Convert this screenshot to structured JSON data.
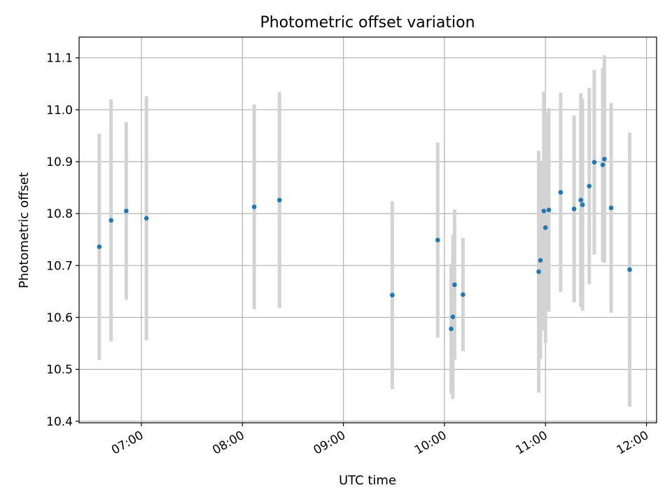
{
  "chart_data": {
    "type": "scatter",
    "title": "Photometric offset variation",
    "xlabel": "UTC time",
    "ylabel": "Photometric offset",
    "x_ticks": [
      "07:00",
      "08:00",
      "09:00",
      "10:00",
      "11:00",
      "12:00"
    ],
    "y_ticks": [
      "10.4",
      "10.5",
      "10.6",
      "10.7",
      "10.8",
      "10.9",
      "11.0",
      "11.1"
    ],
    "xlim": [
      "06:23",
      "12:06"
    ],
    "ylim": [
      10.397,
      11.14
    ],
    "grid": true,
    "series": [
      {
        "points": [
          {
            "x": "06:35",
            "y": 10.736,
            "err": 0.218
          },
          {
            "x": "06:42",
            "y": 10.787,
            "err": 0.233
          },
          {
            "x": "06:51",
            "y": 10.805,
            "err": 0.171
          },
          {
            "x": "07:03",
            "y": 10.791,
            "err": 0.235
          },
          {
            "x": "08:07",
            "y": 10.813,
            "err": 0.197
          },
          {
            "x": "08:22",
            "y": 10.826,
            "err": 0.208
          },
          {
            "x": "09:29",
            "y": 10.643,
            "err": 0.181
          },
          {
            "x": "09:56",
            "y": 10.749,
            "err": 0.188
          },
          {
            "x": "10:04",
            "y": 10.578,
            "err": 0.125
          },
          {
            "x": "10:05",
            "y": 10.601,
            "err": 0.158
          },
          {
            "x": "10:06",
            "y": 10.663,
            "err": 0.145
          },
          {
            "x": "10:11",
            "y": 10.644,
            "err": 0.109
          },
          {
            "x": "10:56",
            "y": 10.688,
            "err": 0.233
          },
          {
            "x": "10:57",
            "y": 10.71,
            "err": 0.19
          },
          {
            "x": "10:59",
            "y": 10.805,
            "err": 0.23
          },
          {
            "x": "11:00",
            "y": 10.773,
            "err": 0.222
          },
          {
            "x": "11:02",
            "y": 10.807,
            "err": 0.196
          },
          {
            "x": "11:09",
            "y": 10.841,
            "err": 0.192
          },
          {
            "x": "11:17",
            "y": 10.809,
            "err": 0.18
          },
          {
            "x": "11:21",
            "y": 10.826,
            "err": 0.206
          },
          {
            "x": "11:22",
            "y": 10.817,
            "err": 0.204
          },
          {
            "x": "11:26",
            "y": 10.853,
            "err": 0.189
          },
          {
            "x": "11:29",
            "y": 10.899,
            "err": 0.178
          },
          {
            "x": "11:34",
            "y": 10.894,
            "err": 0.187
          },
          {
            "x": "11:35",
            "y": 10.905,
            "err": 0.2
          },
          {
            "x": "11:39",
            "y": 10.811,
            "err": 0.202
          },
          {
            "x": "11:50",
            "y": 10.692,
            "err": 0.264
          }
        ]
      }
    ]
  }
}
